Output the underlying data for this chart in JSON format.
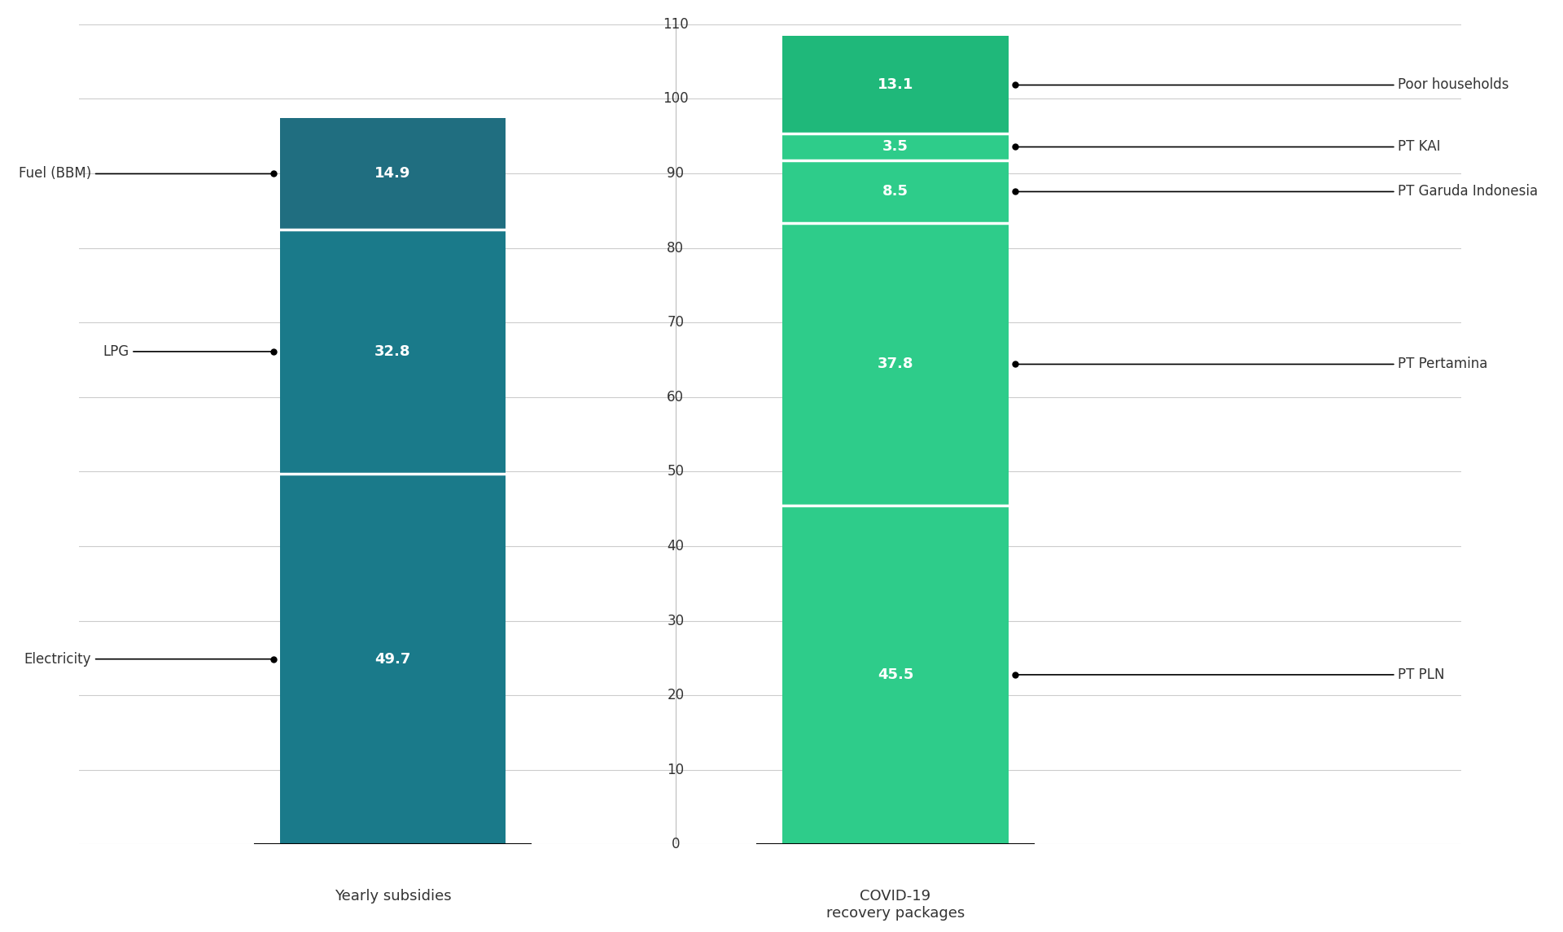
{
  "bar1_segments": [
    {
      "label": "Electricity",
      "value": 49.7,
      "color": "#1a7a8a"
    },
    {
      "label": "LPG",
      "value": 32.8,
      "color": "#1a7a8a"
    },
    {
      "label": "Fuel (BBM)",
      "value": 14.9,
      "color": "#206e80"
    }
  ],
  "bar2_segments": [
    {
      "label": "PT PLN",
      "value": 45.5,
      "color": "#2ecc8a"
    },
    {
      "label": "PT Pertamina",
      "value": 37.8,
      "color": "#2ecc8a"
    },
    {
      "label": "PT Garuda Indonesia",
      "value": 8.5,
      "color": "#2ecc8a"
    },
    {
      "label": "PT KAI",
      "value": 3.5,
      "color": "#2ecc8a"
    },
    {
      "label": "Poor households",
      "value": 13.1,
      "color": "#1fb87a"
    }
  ],
  "bar1_label": "Yearly subsidies",
  "bar2_label": "COVID-19\nrecovery packages",
  "ylim": [
    0,
    110
  ],
  "yticks": [
    0,
    10,
    20,
    30,
    40,
    50,
    60,
    70,
    80,
    90,
    100,
    110
  ],
  "bar1_color_electricity": "#1a7a8a",
  "bar1_color_lpg": "#1a7a8a",
  "bar1_color_fuel": "#206e80",
  "bar2_color_main": "#2ecc8a",
  "bar2_color_top": "#1fb87a",
  "separator_color": "white",
  "label_color": "white",
  "background_color": "#ffffff",
  "grid_color": "#cccccc",
  "annotation_font_size": 13,
  "tick_font_size": 12,
  "xlabel_font_size": 13
}
